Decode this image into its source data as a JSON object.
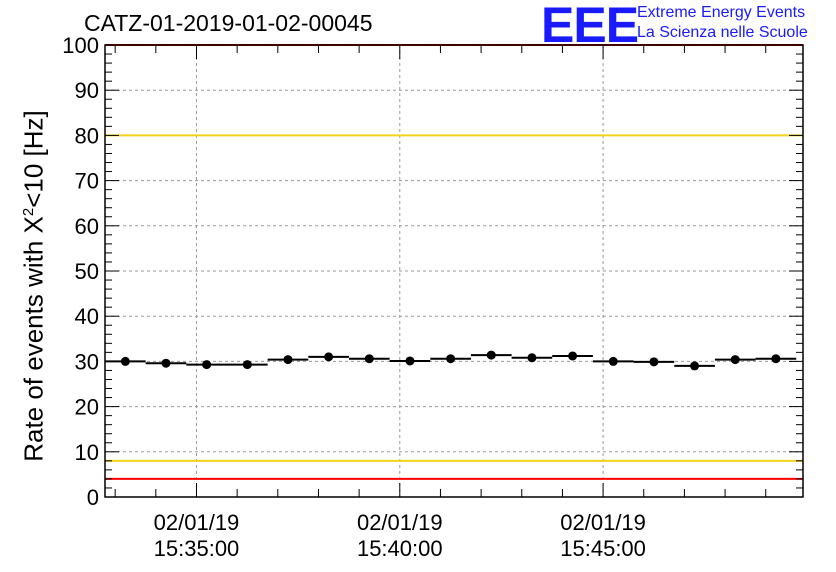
{
  "title": "CATZ-01-2019-01-02-00045",
  "logo": {
    "mark": "EEE",
    "line1": "Extreme Energy Events",
    "line2": "La Scienza nelle Scuole"
  },
  "chart_data": {
    "type": "scatter",
    "title": "CATZ-01-2019-01-02-00045",
    "ylabel_pre": "Rate of events with X",
    "ylabel_sup": "2",
    "ylabel_post": "<10 [Hz]",
    "ylim": [
      0,
      100
    ],
    "xlim": [
      "15:32:45",
      "15:49:55"
    ],
    "grid": true,
    "yticks": [
      0,
      10,
      20,
      30,
      40,
      50,
      60,
      70,
      80,
      90,
      100
    ],
    "xticks": [
      {
        "t": "15:35:00",
        "date": "02/01/19",
        "time": "15:35:00"
      },
      {
        "t": "15:40:00",
        "date": "02/01/19",
        "time": "15:40:00"
      },
      {
        "t": "15:45:00",
        "date": "02/01/19",
        "time": "15:45:00"
      }
    ],
    "reference_lines": [
      {
        "y": 80,
        "color": "#f2d21a"
      },
      {
        "y": 8,
        "color": "#f2d21a"
      },
      {
        "y": 100,
        "color": "#ff0000"
      },
      {
        "y": 4,
        "color": "#ff0000"
      }
    ],
    "bin_width_s": 60,
    "series": [
      {
        "x": [
          "15:33:15",
          "15:34:15",
          "15:35:15",
          "15:36:15",
          "15:37:15",
          "15:38:15",
          "15:39:15",
          "15:40:15",
          "15:41:15",
          "15:42:15",
          "15:43:15",
          "15:44:15",
          "15:45:15",
          "15:46:15",
          "15:47:15",
          "15:48:15",
          "15:49:15"
        ],
        "y": [
          30.0,
          29.6,
          29.3,
          29.3,
          30.4,
          31.0,
          30.6,
          30.1,
          30.6,
          31.4,
          30.8,
          31.2,
          30.0,
          29.9,
          29.0,
          30.4,
          30.6
        ],
        "color": "#000000"
      }
    ]
  }
}
